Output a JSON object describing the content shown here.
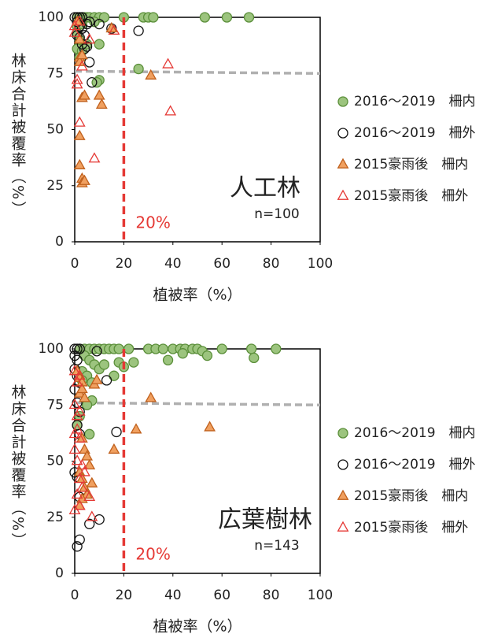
{
  "chart_data": [
    {
      "type": "scatter",
      "title": "人工林",
      "annotation": "n=100",
      "ref_label": "20%",
      "x_label": "植被率（%）",
      "y_label": "林床合計被覆率（%）",
      "xlim": [
        0,
        100
      ],
      "ylim": [
        0,
        100
      ],
      "xticks": [
        0,
        20,
        40,
        60,
        80,
        100
      ],
      "yticks": [
        0,
        25,
        50,
        75,
        100
      ],
      "reference_x": 20,
      "reference_color": "#e53935",
      "trend_line": {
        "x": [
          0,
          100
        ],
        "y": [
          76,
          75
        ],
        "color": "#b0b0b0"
      },
      "legend": "right",
      "series": [
        {
          "name": "2016～2019　柵内",
          "marker": "circle",
          "color": "#5b8f3a",
          "fill": "#9cc47e",
          "x": [
            1,
            2,
            3,
            4,
            5,
            6,
            8,
            10,
            12,
            20,
            28,
            30,
            32,
            53,
            62,
            71,
            1,
            2,
            1,
            2,
            3,
            5,
            8,
            10,
            10,
            9,
            26,
            1,
            3
          ],
          "y": [
            100,
            100,
            100,
            100,
            100,
            100,
            100,
            100,
            100,
            100,
            100,
            100,
            100,
            100,
            100,
            100,
            96,
            90,
            86,
            82,
            85,
            88,
            98,
            88,
            72,
            71,
            77,
            93,
            97
          ]
        },
        {
          "name": "2016～2019　柵外",
          "marker": "circle",
          "color": "#111111",
          "fill": "none",
          "x": [
            0,
            1,
            2,
            3,
            1,
            2,
            3,
            4,
            5,
            6,
            10,
            15,
            26,
            5,
            4,
            6,
            7,
            1,
            2,
            3
          ],
          "y": [
            100,
            100,
            100,
            100,
            98,
            96,
            95,
            92,
            97,
            98,
            97,
            95,
            94,
            87,
            86,
            80,
            71,
            92,
            91,
            88
          ]
        },
        {
          "name": "2015豪雨後　柵内",
          "marker": "triangle",
          "color": "#c0601c",
          "fill": "#f0a060",
          "x": [
            2,
            2,
            3,
            3,
            4,
            10,
            11,
            31,
            2,
            2,
            3,
            3,
            4,
            15,
            2,
            1
          ],
          "y": [
            82,
            80,
            83,
            64,
            65,
            65,
            61,
            74,
            47,
            34,
            28,
            26,
            27,
            95,
            90,
            98
          ]
        },
        {
          "name": "2015豪雨後　柵外",
          "marker": "triangle",
          "color": "#e53935",
          "fill": "none",
          "x": [
            0,
            0,
            1,
            2,
            8,
            3,
            6,
            16,
            38,
            39,
            1,
            2
          ],
          "y": [
            96,
            93,
            70,
            53,
            37,
            78,
            90,
            94,
            79,
            58,
            72,
            98
          ]
        }
      ]
    },
    {
      "type": "scatter",
      "title": "広葉樹林",
      "annotation": "n=143",
      "ref_label": "20%",
      "x_label": "植被率（%）",
      "y_label": "林床合計被覆率（%）",
      "xlim": [
        0,
        100
      ],
      "ylim": [
        0,
        100
      ],
      "xticks": [
        0,
        20,
        40,
        60,
        80,
        100
      ],
      "yticks": [
        0,
        25,
        50,
        75,
        100
      ],
      "reference_x": 20,
      "reference_color": "#e53935",
      "trend_line": {
        "x": [
          0,
          100
        ],
        "y": [
          76,
          75
        ],
        "color": "#b0b0b0"
      },
      "legend": "right",
      "series": [
        {
          "name": "2016～2019　柵内",
          "marker": "circle",
          "color": "#5b8f3a",
          "fill": "#9cc47e",
          "x": [
            2,
            4,
            6,
            8,
            10,
            12,
            14,
            16,
            18,
            22,
            30,
            33,
            36,
            40,
            43,
            45,
            48,
            50,
            60,
            72,
            82,
            24,
            38,
            44,
            52,
            54,
            73,
            4,
            6,
            8,
            10,
            12,
            16,
            18,
            20,
            3,
            5,
            7,
            7,
            5,
            3,
            6,
            1,
            2
          ],
          "y": [
            100,
            100,
            100,
            100,
            100,
            100,
            100,
            100,
            100,
            100,
            100,
            100,
            100,
            100,
            100,
            100,
            100,
            100,
            100,
            100,
            100,
            94,
            95,
            98,
            99,
            97,
            96,
            97,
            95,
            93,
            91,
            93,
            88,
            94,
            92,
            90,
            88,
            85,
            77,
            75,
            86,
            62,
            66,
            70
          ]
        },
        {
          "name": "2016～2019　柵外",
          "marker": "circle",
          "color": "#111111",
          "fill": "none",
          "x": [
            0,
            1,
            2,
            0,
            1,
            0,
            1,
            2,
            9,
            13,
            17,
            0,
            1,
            2,
            1,
            2,
            0,
            1,
            2,
            10,
            6,
            2,
            1
          ],
          "y": [
            100,
            100,
            100,
            97,
            95,
            91,
            88,
            85,
            99,
            86,
            63,
            82,
            76,
            72,
            66,
            62,
            45,
            43,
            34,
            24,
            22,
            15,
            12
          ]
        },
        {
          "name": "2015豪雨後　柵内",
          "marker": "triangle",
          "color": "#c0601c",
          "fill": "#f0a060",
          "x": [
            1,
            2,
            3,
            2,
            3,
            4,
            8,
            9,
            31,
            25,
            55,
            16,
            3,
            4,
            5,
            6,
            7,
            2,
            3,
            4,
            5,
            2,
            3
          ],
          "y": [
            90,
            87,
            85,
            80,
            82,
            78,
            84,
            86,
            78,
            64,
            65,
            55,
            60,
            55,
            52,
            48,
            40,
            45,
            42,
            38,
            35,
            30,
            33
          ]
        },
        {
          "name": "2015豪雨後　柵外",
          "marker": "triangle",
          "color": "#e53935",
          "fill": "none",
          "x": [
            0,
            1,
            2,
            0,
            1,
            2,
            0,
            1,
            2,
            0,
            1,
            3,
            4,
            6,
            7,
            2,
            1,
            0,
            2,
            3
          ],
          "y": [
            90,
            85,
            88,
            75,
            70,
            72,
            62,
            64,
            60,
            55,
            50,
            48,
            45,
            34,
            25,
            42,
            35,
            28,
            30,
            38
          ]
        }
      ]
    }
  ]
}
